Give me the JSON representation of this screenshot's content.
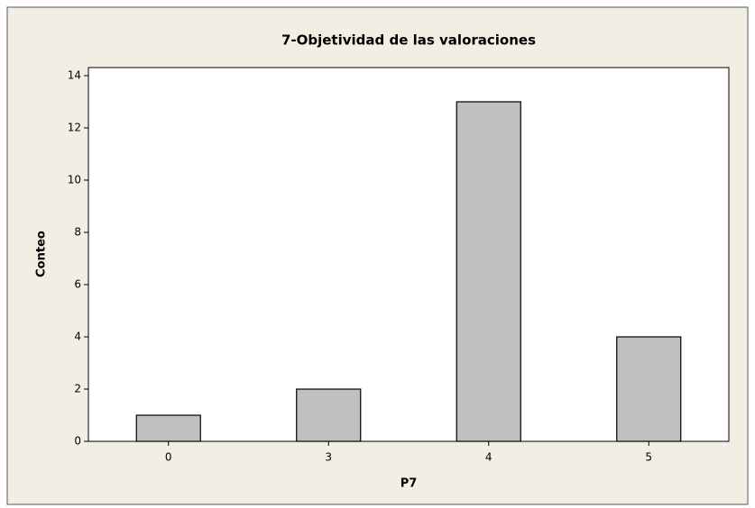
{
  "chart_data": {
    "type": "bar",
    "title": "7-Objetividad de las valoraciones",
    "x_label": "P7",
    "y_label": "Conteo",
    "categories": [
      "0",
      "3",
      "4",
      "5"
    ],
    "values": [
      1,
      2,
      13,
      4
    ],
    "color": "#c0c0c0",
    "ylim": [
      0,
      14
    ],
    "yticks": [
      0,
      2,
      4,
      6,
      8,
      10,
      12,
      14
    ],
    "grid": false
  }
}
